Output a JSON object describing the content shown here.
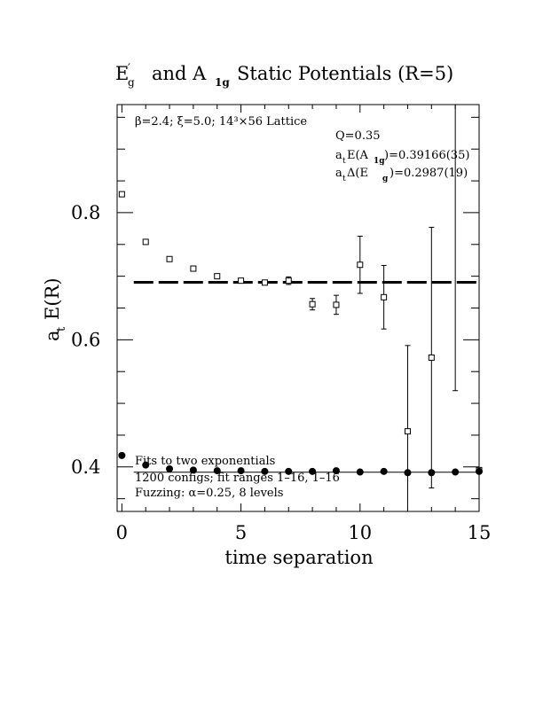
{
  "chart_data": {
    "type": "scatter",
    "title_parts": {
      "e_main": "E",
      "e_prime": "′",
      "e_sub": "g",
      "mid": "and A",
      "a_sub": "1g",
      "end": "Static Potentials (R=5)"
    },
    "xlabel": "time separation",
    "ylabel_main": "a",
    "ylabel_sub": "t",
    "ylabel_rest": "E(R)",
    "xlim": [
      -0.2,
      15
    ],
    "ylim": [
      0.33,
      0.97
    ],
    "x_ticks": [
      0,
      5,
      10,
      15
    ],
    "x_tick_labels": [
      "0",
      "5",
      "10",
      "15"
    ],
    "y_ticks": [
      0.4,
      0.6,
      0.8
    ],
    "y_tick_labels": [
      "0.4",
      "0.6",
      "0.8"
    ],
    "annotations": {
      "lattice": "β=2.4; ξ=5.0; 14³×56 Lattice",
      "q": "Q=0.35",
      "energy_a": "a",
      "energy_t": "t",
      "energy_rest1": "E(A",
      "energy_sub": "1g",
      "energy_rest2": ")=0.39166(35)",
      "delta_a": "a",
      "delta_t": "t",
      "delta_rest1": "Δ(E",
      "delta_prime": "′",
      "delta_sub": "g",
      "delta_rest2": ")=0.2987(19)",
      "fits": "Fits to two exponentials",
      "configs": "1200 configs; fit ranges 1–16, 1–16",
      "fuzzing": "Fuzzing: α=0.25, 8 levels"
    },
    "series": [
      {
        "marker": "open-square",
        "x": [
          0,
          1,
          2,
          3,
          4,
          5,
          6,
          7,
          8,
          9,
          10,
          11,
          12,
          13,
          14,
          15
        ],
        "y": [
          0.829,
          0.754,
          0.727,
          0.712,
          0.7,
          0.693,
          0.69,
          0.693,
          0.656,
          0.655,
          0.718,
          0.667,
          0.456,
          0.572,
          1.0,
          0.395
        ],
        "err": [
          0.002,
          0.002,
          0.002,
          0.002,
          0.002,
          0.002,
          0.003,
          0.006,
          0.009,
          0.015,
          0.045,
          0.05,
          0.135,
          0.205,
          0.48,
          0.004
        ]
      },
      {
        "marker": "filled-circle",
        "x": [
          0,
          1,
          2,
          3,
          4,
          5,
          6,
          7,
          8,
          9,
          10,
          11,
          12,
          13,
          14,
          15
        ],
        "y": [
          0.418,
          0.403,
          0.397,
          0.395,
          0.394,
          0.394,
          0.393,
          0.393,
          0.393,
          0.394,
          0.392,
          0.393,
          0.391,
          0.391,
          0.392,
          0.393
        ]
      }
    ],
    "fit_lines": [
      {
        "style": "dashed-thick",
        "y": 0.6904,
        "x_from": 0.5,
        "x_to": 15
      },
      {
        "style": "solid-thin",
        "y": 0.3917,
        "x_from": 0.5,
        "x_to": 15
      }
    ]
  }
}
